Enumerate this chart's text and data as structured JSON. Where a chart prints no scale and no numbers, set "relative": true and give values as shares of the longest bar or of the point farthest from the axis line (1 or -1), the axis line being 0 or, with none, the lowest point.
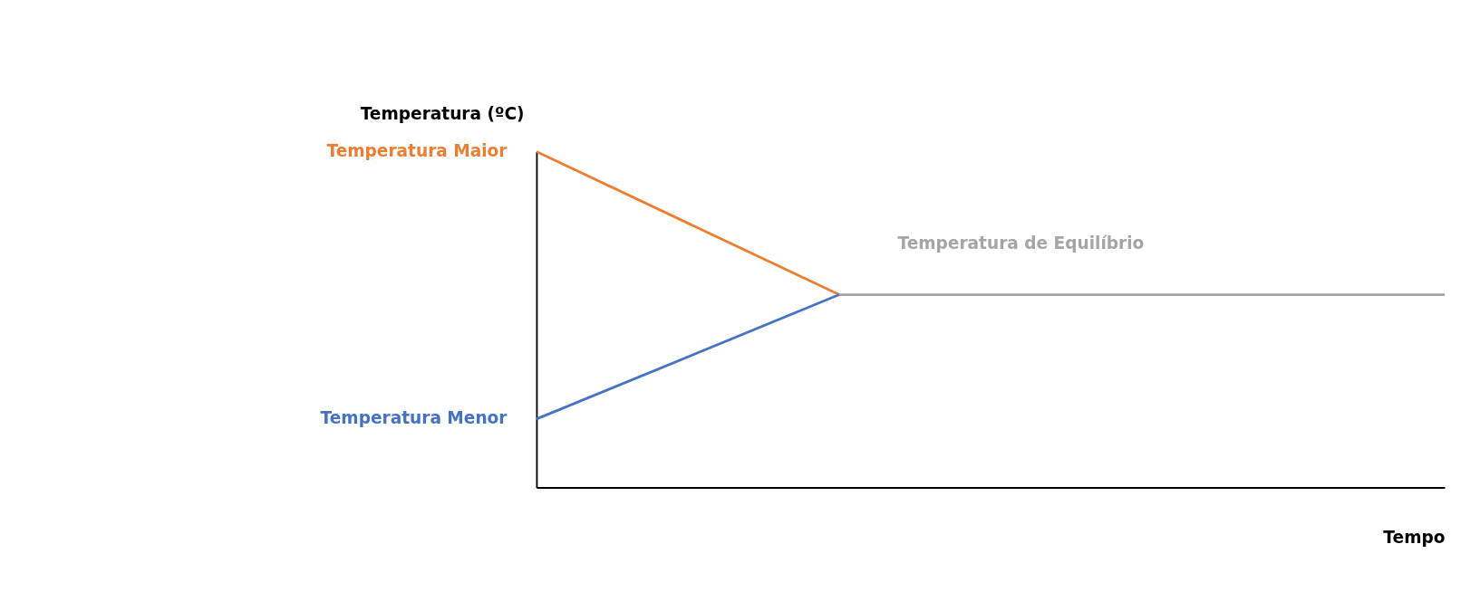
{
  "chart_data": {
    "type": "line",
    "relative": true,
    "ylabel": "Temperatura (ºC)",
    "xlabel": "Tempo",
    "categories": [
      null,
      null,
      null,
      null
    ],
    "series": [
      {
        "name": "Temperatura Maior",
        "color": "#ed7d31",
        "values": [
          1,
          0.574,
          null,
          null
        ]
      },
      {
        "name": "Temperatura Menor",
        "color": "#4472c4",
        "values": [
          0.204,
          0.574,
          null,
          null
        ]
      },
      {
        "name": "Temperatura de Equilíbrio",
        "color": "#a5a5a5",
        "values": [
          null,
          0.574,
          0.574,
          0.574
        ]
      }
    ],
    "grid": false,
    "marker": "none",
    "line_style": "solid"
  }
}
